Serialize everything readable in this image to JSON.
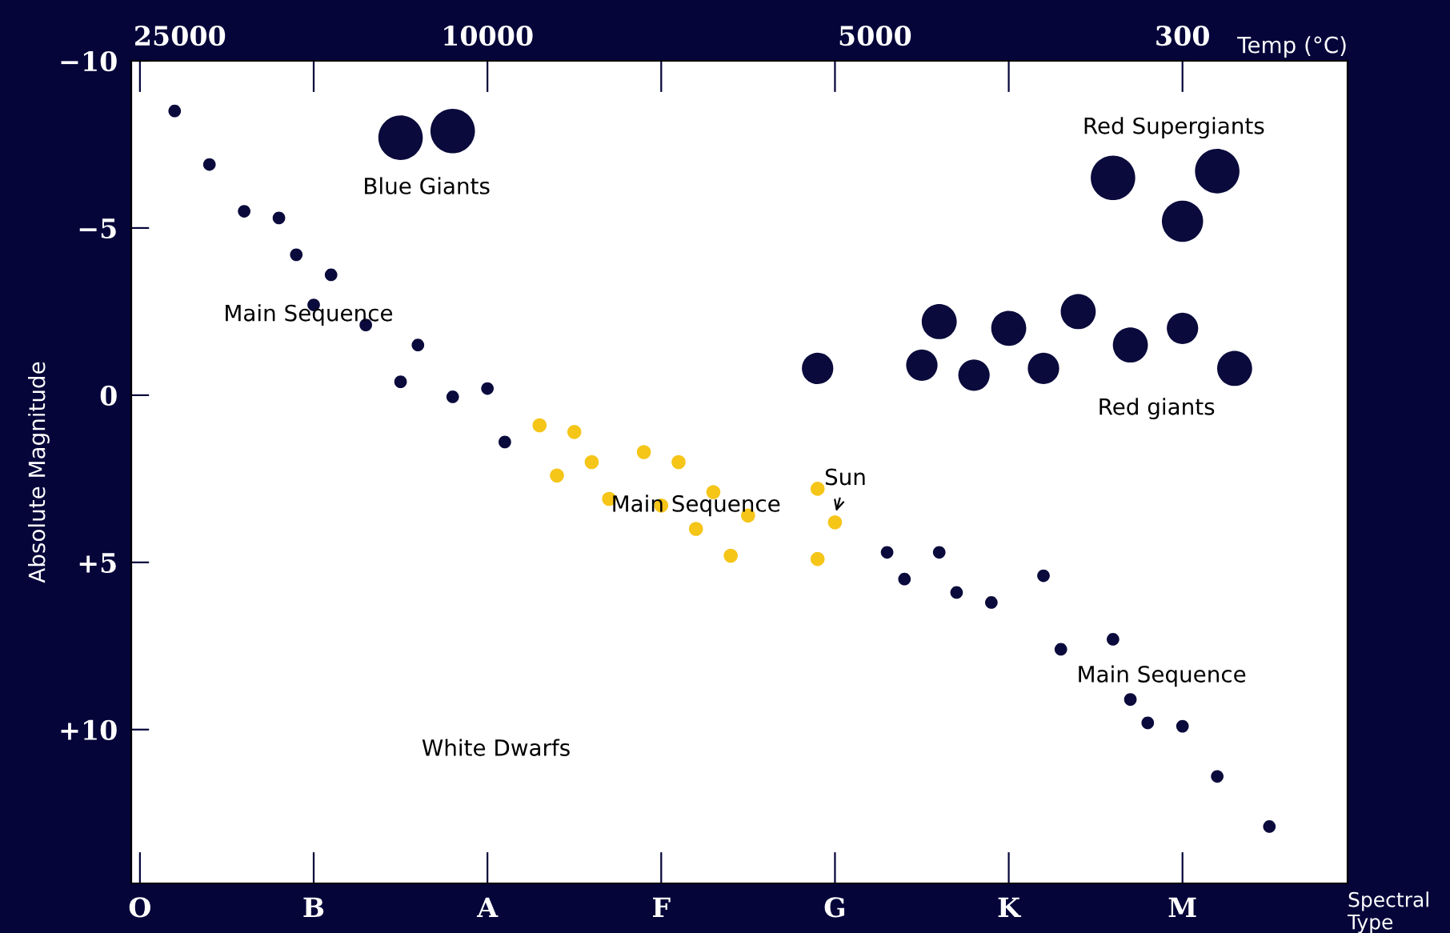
{
  "chart_data": {
    "type": "bubble",
    "xlabel": "Spectral Type",
    "ylabel": "Absolute Magnitude",
    "x2label": "Temp (°C)",
    "categories": [
      "O",
      null,
      null,
      null,
      null,
      null,
      null,
      null,
      null,
      null,
      "B",
      null,
      null,
      null,
      null,
      null,
      null,
      null,
      null,
      null,
      "A",
      null,
      null,
      null,
      null,
      null,
      null,
      null,
      null,
      null,
      "F",
      null,
      null,
      null,
      null,
      null,
      null,
      null,
      null,
      null,
      "G",
      null,
      null,
      null,
      null,
      null,
      null,
      null,
      null,
      null,
      "K",
      null,
      null,
      null,
      null,
      null,
      null,
      null,
      null,
      null,
      "M",
      null,
      null,
      null,
      null,
      null,
      null,
      null,
      null,
      null
    ],
    "ylim": [
      14.6,
      -10
    ],
    "yticks": [
      {
        "value": -10,
        "label": "−10"
      },
      {
        "value": -5,
        "label": "−5"
      },
      {
        "value": 0,
        "label": "0"
      },
      {
        "value": 5,
        "label": "+5"
      },
      {
        "value": 10,
        "label": "+10"
      }
    ],
    "grid": false,
    "series": [
      {
        "color": "#0a0a3c",
        "values": [
          null,
          null,
          -8.5,
          null,
          -6.9,
          null,
          -5.5,
          null,
          -5.3,
          -4.2,
          -2.7,
          -3.6,
          null,
          -2.1,
          null,
          -0.4,
          -1.5,
          null,
          0.05,
          null,
          -0.2,
          1.4,
          null,
          null,
          null,
          null,
          null,
          null,
          null,
          null,
          null,
          null,
          null,
          null,
          null,
          null,
          null,
          null,
          null,
          null,
          null,
          null,
          null,
          4.7,
          5.5,
          null,
          4.7,
          5.9,
          null,
          6.2,
          null,
          null,
          5.4,
          7.6,
          null,
          null,
          7.3,
          9.1,
          9.8,
          null,
          9.9,
          null,
          11.4,
          null,
          null,
          12.9,
          null,
          null,
          null,
          null
        ],
        "sizes": [
          null,
          null,
          0.08,
          null,
          0.08,
          null,
          0.08,
          null,
          0.08,
          0.08,
          0.08,
          0.08,
          null,
          0.08,
          null,
          0.08,
          0.08,
          null,
          0.08,
          null,
          0.08,
          0.08,
          null,
          null,
          null,
          null,
          null,
          null,
          null,
          null,
          null,
          null,
          null,
          null,
          null,
          null,
          null,
          null,
          null,
          null,
          null,
          null,
          null,
          0.08,
          0.08,
          null,
          0.08,
          0.08,
          null,
          0.08,
          null,
          null,
          0.08,
          0.08,
          null,
          null,
          0.08,
          0.08,
          0.08,
          null,
          0.08,
          null,
          0.08,
          null,
          null,
          0.08,
          null,
          null,
          null,
          null
        ]
      },
      {
        "color": "#0a0a3c",
        "values": [
          null,
          null,
          null,
          null,
          null,
          null,
          null,
          null,
          null,
          null,
          null,
          null,
          null,
          null,
          null,
          -7.7,
          null,
          null,
          -7.9,
          null,
          null,
          null,
          null,
          null,
          null,
          null,
          null,
          null,
          null,
          null,
          null,
          null,
          null,
          null,
          null,
          null,
          null,
          null,
          null,
          -0.8,
          null,
          null,
          null,
          null,
          null,
          -0.9,
          -2.2,
          null,
          -0.6,
          null,
          -2.0,
          null,
          -0.8,
          null,
          -2.5,
          null,
          -6.5,
          -1.5,
          null,
          null,
          -2.0,
          null,
          -6.7,
          -0.8,
          null,
          null,
          null,
          null,
          null,
          null
        ],
        "sizes": [
          null,
          null,
          null,
          null,
          null,
          null,
          null,
          null,
          null,
          null,
          null,
          null,
          null,
          null,
          null,
          1,
          null,
          null,
          1,
          null,
          null,
          null,
          null,
          null,
          null,
          null,
          null,
          null,
          null,
          null,
          null,
          null,
          null,
          null,
          null,
          null,
          null,
          null,
          null,
          0.5,
          null,
          null,
          null,
          null,
          null,
          0.5,
          0.62,
          null,
          0.5,
          null,
          0.62,
          null,
          0.5,
          null,
          0.62,
          null,
          1,
          0.62,
          null,
          null,
          0.5,
          null,
          1,
          0.62,
          null,
          null,
          null,
          null,
          null,
          null
        ]
      },
      {
        "color": "#0a0a3c",
        "values": [
          null,
          null,
          null,
          null,
          null,
          null,
          null,
          null,
          null,
          null,
          null,
          null,
          null,
          null,
          null,
          null,
          null,
          null,
          null,
          null,
          null,
          null,
          null,
          null,
          null,
          null,
          null,
          null,
          null,
          null,
          null,
          null,
          null,
          null,
          null,
          null,
          null,
          null,
          null,
          null,
          null,
          null,
          null,
          null,
          null,
          null,
          null,
          null,
          null,
          null,
          null,
          null,
          null,
          null,
          null,
          null,
          null,
          null,
          null,
          null,
          -5.2,
          null,
          null,
          null,
          null,
          null,
          null,
          null,
          null,
          null
        ],
        "sizes": [
          null,
          null,
          null,
          null,
          null,
          null,
          null,
          null,
          null,
          null,
          null,
          null,
          null,
          null,
          null,
          null,
          null,
          null,
          null,
          null,
          null,
          null,
          null,
          null,
          null,
          null,
          null,
          null,
          null,
          null,
          null,
          null,
          null,
          null,
          null,
          null,
          null,
          null,
          null,
          null,
          null,
          null,
          null,
          null,
          null,
          null,
          null,
          null,
          null,
          null,
          null,
          null,
          null,
          null,
          null,
          null,
          null,
          null,
          null,
          null,
          0.86,
          null,
          null,
          null,
          null,
          null,
          null,
          null,
          null,
          null
        ]
      },
      {
        "color": "#f5c518",
        "values": [
          null,
          null,
          null,
          null,
          null,
          null,
          null,
          null,
          null,
          null,
          null,
          null,
          null,
          null,
          null,
          null,
          null,
          null,
          null,
          null,
          null,
          null,
          null,
          0.9,
          2.4,
          1.1,
          2.0,
          3.1,
          null,
          1.7,
          3.3,
          2.0,
          4.0,
          2.9,
          4.8,
          3.6,
          null,
          null,
          null,
          2.8,
          3.8,
          null,
          null,
          null,
          null,
          null,
          null,
          null,
          null,
          null,
          null,
          null,
          null,
          null,
          null,
          null,
          null,
          null,
          null,
          null,
          null,
          null,
          null,
          null,
          null,
          null,
          null,
          null,
          null,
          null
        ],
        "sizes": [
          null,
          null,
          null,
          null,
          null,
          null,
          null,
          null,
          null,
          null,
          null,
          null,
          null,
          null,
          null,
          null,
          null,
          null,
          null,
          null,
          null,
          null,
          null,
          0.1,
          0.1,
          0.1,
          0.1,
          0.1,
          null,
          0.1,
          0.1,
          0.1,
          0.1,
          0.1,
          0.1,
          0.1,
          null,
          null,
          null,
          0.1,
          0.1,
          null,
          null,
          null,
          null,
          null,
          null,
          null,
          null,
          null,
          null,
          null,
          null,
          null,
          null,
          null,
          null,
          null,
          null,
          null,
          null,
          null,
          null,
          null,
          null,
          null,
          null,
          null,
          null,
          null
        ]
      },
      {
        "color": "#f5c518",
        "values": [
          null,
          null,
          null,
          null,
          null,
          null,
          null,
          null,
          null,
          null,
          null,
          null,
          null,
          null,
          null,
          null,
          null,
          null,
          null,
          null,
          null,
          null,
          null,
          null,
          null,
          null,
          null,
          null,
          null,
          null,
          null,
          null,
          null,
          null,
          null,
          null,
          null,
          null,
          null,
          4.9,
          null,
          null,
          null,
          null,
          null,
          null,
          null,
          null,
          null,
          null,
          null,
          null,
          null,
          null,
          null,
          null,
          null,
          null,
          null,
          null,
          null,
          null,
          null,
          null,
          null,
          null,
          null,
          null,
          null,
          null
        ],
        "sizes": [
          null,
          null,
          null,
          null,
          null,
          null,
          null,
          null,
          null,
          null,
          null,
          null,
          null,
          null,
          null,
          null,
          null,
          null,
          null,
          null,
          null,
          null,
          null,
          null,
          null,
          null,
          null,
          null,
          null,
          null,
          null,
          null,
          null,
          null,
          null,
          null,
          null,
          null,
          null,
          0.1,
          null,
          null,
          null,
          null,
          null,
          null,
          null,
          null,
          null,
          null,
          null,
          null,
          null,
          null,
          null,
          null,
          null,
          null,
          null,
          null,
          null,
          null,
          null,
          null,
          null,
          null,
          null,
          null,
          null,
          null
        ]
      }
    ],
    "annotations": [
      "25000",
      "10000",
      "5000",
      "300",
      "Blue Giants",
      "Main Sequence",
      "Main Sequence",
      "Main Sequence",
      "Red Supergiants",
      "Red giants",
      "White Dwarfs",
      "Sun"
    ]
  }
}
